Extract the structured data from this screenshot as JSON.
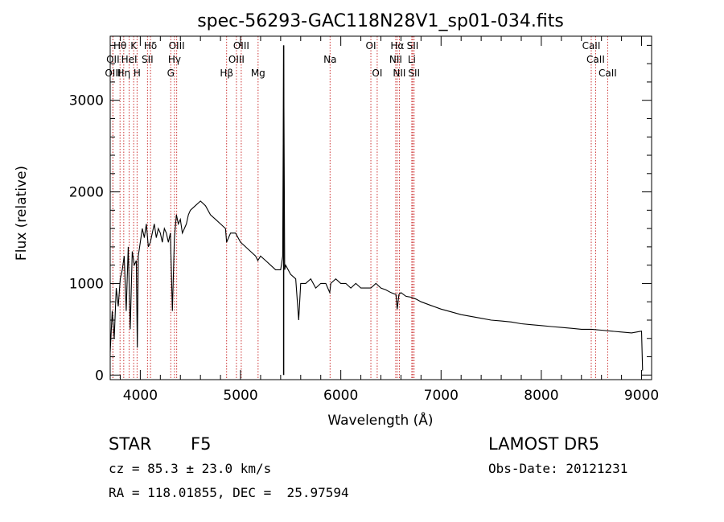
{
  "chart_data": {
    "type": "line",
    "title": "spec-56293-GAC118N28V1_sp01-034.fits",
    "xlabel": "Wavelength (Å)",
    "ylabel": "Flux (relative)",
    "xlim": [
      3700,
      9100
    ],
    "ylim": [
      -50,
      3700
    ],
    "xticks": [
      4000,
      5000,
      6000,
      7000,
      8000,
      9000
    ],
    "yticks": [
      0,
      1000,
      2000,
      3000
    ],
    "grid": false,
    "series": [
      {
        "x": [
          3700,
          3720,
          3740,
          3760,
          3780,
          3800,
          3820,
          3840,
          3860,
          3880,
          3900,
          3920,
          3940,
          3960,
          3970,
          3980,
          4000,
          4020,
          4040,
          4060,
          4080,
          4100,
          4120,
          4140,
          4160,
          4180,
          4200,
          4220,
          4240,
          4260,
          4280,
          4300,
          4320,
          4340,
          4360,
          4380,
          4400,
          4420,
          4440,
          4460,
          4480,
          4500,
          4550,
          4600,
          4650,
          4700,
          4750,
          4800,
          4850,
          4861,
          4880,
          4900,
          4950,
          5000,
          5050,
          5100,
          5150,
          5172,
          5200,
          5250,
          5300,
          5350,
          5400,
          5420,
          5430,
          5440,
          5450,
          5500,
          5550,
          5580,
          5600,
          5650,
          5700,
          5750,
          5800,
          5850,
          5890,
          5900,
          5950,
          6000,
          6050,
          6100,
          6150,
          6200,
          6250,
          6300,
          6350,
          6400,
          6450,
          6500,
          6550,
          6563,
          6580,
          6600,
          6650,
          6700,
          6750,
          6800,
          6900,
          7000,
          7100,
          7200,
          7300,
          7400,
          7500,
          7600,
          7700,
          7800,
          7900,
          8000,
          8100,
          8200,
          8300,
          8400,
          8500,
          8600,
          8700,
          8800,
          8900,
          8950,
          9000,
          9010
        ],
        "y": [
          250,
          700,
          400,
          950,
          750,
          1050,
          1150,
          1300,
          700,
          1400,
          500,
          1350,
          1200,
          1250,
          300,
          1300,
          1450,
          1600,
          1500,
          1650,
          1400,
          1450,
          1550,
          1650,
          1500,
          1600,
          1550,
          1450,
          1600,
          1550,
          1450,
          1550,
          700,
          1500,
          1750,
          1650,
          1700,
          1550,
          1600,
          1650,
          1750,
          1800,
          1850,
          1900,
          1850,
          1750,
          1700,
          1650,
          1600,
          1450,
          1500,
          1550,
          1550,
          1450,
          1400,
          1350,
          1300,
          1250,
          1300,
          1250,
          1200,
          1150,
          1150,
          1300,
          3600,
          1150,
          1200,
          1100,
          1050,
          600,
          1000,
          1000,
          1050,
          950,
          1000,
          1000,
          900,
          1000,
          1050,
          1000,
          1000,
          950,
          1000,
          950,
          950,
          950,
          1000,
          950,
          930,
          900,
          880,
          720,
          880,
          900,
          860,
          850,
          830,
          800,
          760,
          720,
          690,
          660,
          640,
          620,
          600,
          590,
          580,
          560,
          550,
          540,
          530,
          520,
          510,
          500,
          500,
          490,
          480,
          470,
          460,
          470,
          480,
          50
        ],
        "spikes": [
          {
            "x": 5430,
            "y": 3600
          }
        ]
      }
    ],
    "line_markers": [
      {
        "label": "Hθ",
        "x": 3798,
        "row": 1
      },
      {
        "label": "OII",
        "x": 3727,
        "row": 2
      },
      {
        "label": "OIII",
        "x": 3727,
        "row": 3
      },
      {
        "label": "K",
        "x": 3934,
        "row": 1
      },
      {
        "label": "HeI",
        "x": 3889,
        "row": 2
      },
      {
        "label": "Hη",
        "x": 3835,
        "row": 3
      },
      {
        "label": "H",
        "x": 3968,
        "row": 3
      },
      {
        "label": "Hδ",
        "x": 4102,
        "row": 1
      },
      {
        "label": "SII",
        "x": 4072,
        "row": 2
      },
      {
        "label": "OIII",
        "x": 4363,
        "row": 1
      },
      {
        "label": "Hγ",
        "x": 4341,
        "row": 2
      },
      {
        "label": "G",
        "x": 4304,
        "row": 3
      },
      {
        "label": "OIII",
        "x": 5007,
        "row": 1
      },
      {
        "label": "OIII",
        "x": 4959,
        "row": 2
      },
      {
        "label": "Hβ",
        "x": 4861,
        "row": 3
      },
      {
        "label": "Mg",
        "x": 5175,
        "row": 3
      },
      {
        "label": "Na",
        "x": 5893,
        "row": 2
      },
      {
        "label": "OI",
        "x": 6300,
        "row": 1
      },
      {
        "label": "OI",
        "x": 6363,
        "row": 3
      },
      {
        "label": "Hα",
        "x": 6563,
        "row": 1
      },
      {
        "label": "SII",
        "x": 6717,
        "row": 1
      },
      {
        "label": "NII",
        "x": 6548,
        "row": 2
      },
      {
        "label": "Li",
        "x": 6708,
        "row": 2
      },
      {
        "label": "NII",
        "x": 6584,
        "row": 3
      },
      {
        "label": "SII",
        "x": 6731,
        "row": 3
      },
      {
        "label": "CaII",
        "x": 8498,
        "row": 1
      },
      {
        "label": "CaII",
        "x": 8542,
        "row": 2
      },
      {
        "label": "CaII",
        "x": 8662,
        "row": 3
      }
    ]
  },
  "info": {
    "class_label": "STAR",
    "subclass_label": "F5",
    "survey": "LAMOST DR5",
    "redshift": "cz = 85.3 ± 23.0 km/s",
    "obs_date": "Obs-Date: 20121231",
    "coords": "RA = 118.01855, DEC =  25.97594"
  },
  "colors": {
    "axis": "#000000",
    "spectrum": "#000000",
    "marker_line": "#cc3333",
    "background": "#ffffff"
  }
}
